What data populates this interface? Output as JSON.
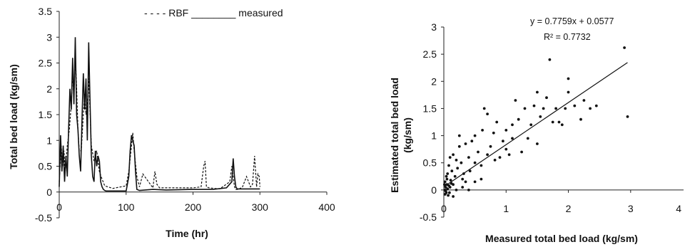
{
  "chart_data": [
    {
      "type": "line",
      "xlabel": "Time (hr)",
      "ylabel": "Total bed load (kg/sm)",
      "xlim": [
        0,
        400
      ],
      "ylim": [
        -0.5,
        3.5
      ],
      "xticks": [
        "0",
        "100",
        "200",
        "300",
        "400"
      ],
      "yticks": [
        "-0.5",
        "0",
        "0.5",
        "1",
        "1.5",
        "2",
        "2.5",
        "3",
        "3.5"
      ],
      "legend": {
        "position": "top-center",
        "entries": [
          "RBF",
          "measured"
        ],
        "text": "- - - - RBF ________ measured"
      },
      "series": [
        {
          "name": "measured",
          "style": "solid",
          "x": [
            0,
            2,
            4,
            6,
            8,
            10,
            12,
            14,
            16,
            18,
            20,
            22,
            24,
            26,
            28,
            30,
            32,
            34,
            36,
            38,
            40,
            42,
            44,
            46,
            48,
            50,
            52,
            54,
            56,
            58,
            60,
            62,
            64,
            66,
            68,
            70,
            80,
            100,
            104,
            106,
            108,
            110,
            112,
            114,
            116,
            120,
            140,
            160,
            200,
            230,
            250,
            258,
            260,
            262,
            264,
            266,
            270,
            280,
            290,
            300
          ],
          "y": [
            0.1,
            1.1,
            0.4,
            0.9,
            0.2,
            0.7,
            0.3,
            1.2,
            2.0,
            1.6,
            2.6,
            1.7,
            3.0,
            1.5,
            1.2,
            0.7,
            0.4,
            1.4,
            2.3,
            1.6,
            2.2,
            1.0,
            2.9,
            1.8,
            0.7,
            0.3,
            0.2,
            0.8,
            0.5,
            0.7,
            0.6,
            0.2,
            0.1,
            0.05,
            0.03,
            0.02,
            0.02,
            0.02,
            0.3,
            0.8,
            1.1,
            1.0,
            0.9,
            0.4,
            0.05,
            0.03,
            0.05,
            0.04,
            0.05,
            0.05,
            0.08,
            0.2,
            0.65,
            0.3,
            0.1,
            0.06,
            0.06,
            0.06,
            0.06,
            0.06
          ]
        },
        {
          "name": "RBF",
          "style": "dashed",
          "x": [
            0,
            3,
            5,
            7,
            9,
            12,
            15,
            18,
            20,
            22,
            24,
            26,
            28,
            30,
            33,
            36,
            38,
            40,
            42,
            44,
            46,
            48,
            52,
            56,
            60,
            64,
            68,
            80,
            100,
            104,
            108,
            110,
            112,
            116,
            120,
            125,
            140,
            143,
            146,
            150,
            180,
            200,
            212,
            216,
            218,
            220,
            224,
            240,
            255,
            258,
            260,
            262,
            264,
            268,
            274,
            280,
            286,
            289,
            292,
            295,
            297,
            299,
            300
          ],
          "y": [
            0.2,
            0.9,
            0.5,
            0.8,
            0.4,
            0.9,
            1.2,
            1.7,
            2.3,
            1.8,
            2.7,
            2.0,
            1.2,
            0.8,
            0.8,
            1.5,
            1.9,
            1.5,
            1.7,
            2.2,
            1.6,
            0.9,
            0.6,
            0.8,
            0.4,
            0.25,
            0.12,
            0.07,
            0.12,
            0.4,
            0.9,
            1.15,
            0.8,
            0.3,
            0.1,
            0.35,
            0.08,
            0.4,
            0.15,
            0.08,
            0.08,
            0.08,
            0.1,
            0.5,
            0.6,
            0.1,
            0.08,
            0.06,
            0.2,
            0.5,
            0.3,
            0.1,
            0.05,
            0.05,
            0.1,
            0.3,
            0.1,
            0.15,
            0.7,
            0.1,
            0.35,
            0.3,
            0.1
          ]
        }
      ]
    },
    {
      "type": "scatter",
      "xlabel": "Measured total bed load (kg/sm)",
      "ylabel": "Estimated total bed load\n(kg/sm)",
      "xlim": [
        0,
        4
      ],
      "ylim": [
        -0.5,
        3
      ],
      "xticks": [
        "0",
        "1",
        "2",
        "3",
        "4"
      ],
      "yticks": [
        "-0.5",
        "0",
        "0.5",
        "1",
        "1.5",
        "2",
        "2.5",
        "3"
      ],
      "annotations": [
        "y = 0.7759x + 0.0577",
        "R² = 0.7732"
      ],
      "trendline": {
        "slope": 0.7759,
        "intercept": 0.0577,
        "x_range": [
          0,
          2.95
        ]
      },
      "points": [
        [
          0.02,
          0.0
        ],
        [
          0.03,
          0.05
        ],
        [
          0.04,
          -0.05
        ],
        [
          0.05,
          0.1
        ],
        [
          0.06,
          0.02
        ],
        [
          0.02,
          0.15
        ],
        [
          0.07,
          -0.1
        ],
        [
          0.08,
          0.08
        ],
        [
          0.03,
          -0.02
        ],
        [
          0.05,
          0.2
        ],
        [
          0.1,
          0.05
        ],
        [
          0.12,
          0.12
        ],
        [
          0.09,
          -0.05
        ],
        [
          0.01,
          0.1
        ],
        [
          0.04,
          0.25
        ],
        [
          0.06,
          0.3
        ],
        [
          0.15,
          0.1
        ],
        [
          0.02,
          -0.08
        ],
        [
          0.11,
          0.18
        ],
        [
          0.08,
          0.45
        ],
        [
          0.13,
          0.35
        ],
        [
          0.1,
          0.6
        ],
        [
          0.18,
          0.25
        ],
        [
          0.2,
          0.55
        ],
        [
          0.22,
          0.4
        ],
        [
          0.25,
          0.8
        ],
        [
          0.15,
          0.65
        ],
        [
          0.3,
          0.2
        ],
        [
          0.28,
          0.5
        ],
        [
          0.32,
          0.3
        ],
        [
          0.35,
          0.85
        ],
        [
          0.4,
          0.6
        ],
        [
          0.42,
          0.35
        ],
        [
          0.45,
          0.9
        ],
        [
          0.5,
          0.5
        ],
        [
          0.5,
          1.0
        ],
        [
          0.55,
          0.7
        ],
        [
          0.6,
          0.45
        ],
        [
          0.62,
          1.1
        ],
        [
          0.65,
          1.5
        ],
        [
          0.7,
          1.4
        ],
        [
          0.7,
          0.65
        ],
        [
          0.75,
          0.8
        ],
        [
          0.8,
          1.05
        ],
        [
          0.82,
          0.55
        ],
        [
          0.85,
          1.25
        ],
        [
          0.9,
          0.6
        ],
        [
          0.95,
          0.9
        ],
        [
          1.0,
          0.75
        ],
        [
          1.0,
          1.1
        ],
        [
          1.05,
          0.65
        ],
        [
          1.1,
          1.2
        ],
        [
          1.1,
          0.95
        ],
        [
          1.15,
          1.65
        ],
        [
          1.2,
          1.3
        ],
        [
          1.25,
          0.7
        ],
        [
          1.3,
          1.5
        ],
        [
          1.35,
          0.95
        ],
        [
          1.4,
          1.2
        ],
        [
          1.45,
          1.55
        ],
        [
          1.5,
          1.8
        ],
        [
          1.5,
          0.85
        ],
        [
          1.55,
          1.35
        ],
        [
          1.6,
          1.5
        ],
        [
          1.65,
          1.7
        ],
        [
          1.7,
          2.4
        ],
        [
          1.75,
          1.25
        ],
        [
          1.8,
          1.5
        ],
        [
          1.85,
          1.25
        ],
        [
          1.9,
          1.2
        ],
        [
          1.95,
          1.5
        ],
        [
          2.0,
          1.8
        ],
        [
          2.0,
          2.05
        ],
        [
          2.1,
          1.55
        ],
        [
          2.2,
          1.3
        ],
        [
          2.25,
          1.65
        ],
        [
          2.35,
          1.5
        ],
        [
          2.45,
          1.55
        ],
        [
          2.9,
          2.62
        ],
        [
          2.95,
          1.35
        ],
        [
          0.3,
          0.05
        ],
        [
          0.2,
          0.0
        ],
        [
          0.35,
          0.15
        ],
        [
          0.25,
          1.0
        ],
        [
          0.4,
          0.0
        ],
        [
          0.15,
          -0.12
        ],
        [
          0.5,
          0.15
        ],
        [
          0.6,
          0.2
        ]
      ]
    }
  ]
}
